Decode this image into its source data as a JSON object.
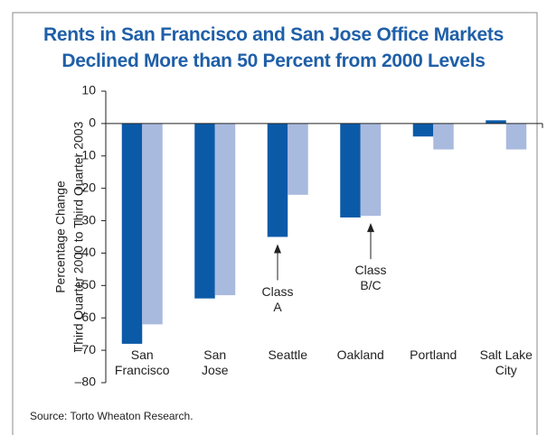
{
  "chart_data": {
    "type": "bar",
    "title": "Rents in San Francisco and San Jose Office Markets\nDeclined More than 50 Percent from 2000 Levels",
    "ylabel": [
      "Percentage Change",
      "Third Quarter 2000 to Third Quarter 2003"
    ],
    "categories": [
      "San\nFrancisco",
      "San\nJose",
      "Seattle",
      "Oakland",
      "Portland",
      "Salt Lake\nCity"
    ],
    "series": [
      {
        "color": "#0b5aa8",
        "values": [
          -68,
          -54,
          -35,
          -29,
          -4,
          1
        ]
      },
      {
        "color": "#a9badf",
        "values": [
          -62,
          -53,
          -22,
          -28.5,
          -8,
          -8
        ]
      }
    ],
    "ylim": [
      -80,
      10
    ],
    "yticks": [
      {
        "value": -80,
        "label": "–80"
      },
      {
        "value": -70,
        "label": "–70"
      },
      {
        "value": -60,
        "label": "–60"
      },
      {
        "value": -50,
        "label": "–50"
      },
      {
        "value": -40,
        "label": "–40"
      },
      {
        "value": -30,
        "label": "–30"
      },
      {
        "value": -20,
        "label": "–20"
      },
      {
        "value": -10,
        "label": "–10"
      },
      0,
      10
    ],
    "annotations": [
      {
        "text": "Class\nA",
        "category": 2,
        "series": 0
      },
      {
        "text": "Class\nB/C",
        "category": 3,
        "series": 1
      }
    ],
    "source": "Source: Torto Wheaton Research."
  }
}
